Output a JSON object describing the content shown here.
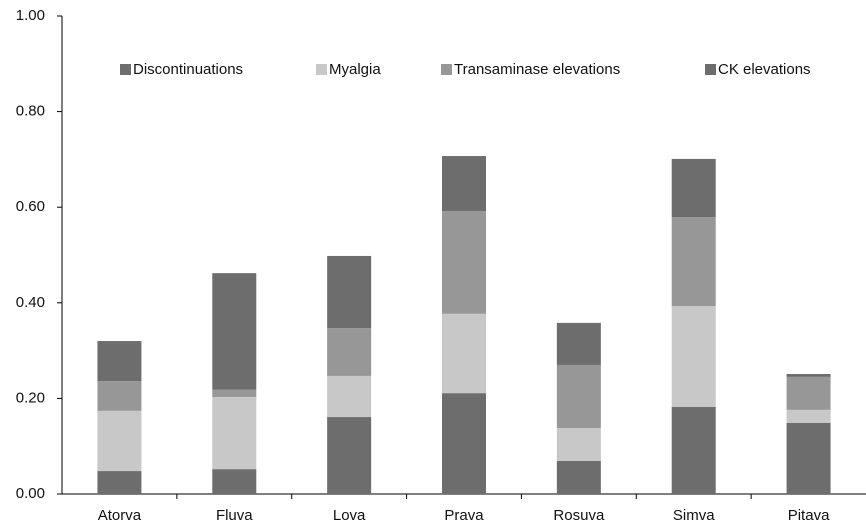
{
  "chart_data": {
    "type": "stacked_bar",
    "categories": [
      "Atorva",
      "Fluva",
      "Lova",
      "Prava",
      "Rosuva",
      "Simva",
      "Pitava"
    ],
    "series": [
      {
        "name": "Discontinuations",
        "color": "#6d6d6d",
        "values": [
          0.048,
          0.052,
          0.161,
          0.211,
          0.069,
          0.182,
          0.149
        ]
      },
      {
        "name": "Myalgia",
        "color": "#c8c8c8",
        "values": [
          0.126,
          0.151,
          0.086,
          0.166,
          0.069,
          0.211,
          0.027
        ]
      },
      {
        "name": "Transaminase elevations",
        "color": "#979797",
        "values": [
          0.062,
          0.015,
          0.1,
          0.215,
          0.132,
          0.186,
          0.069
        ]
      },
      {
        "name": "CK elevations",
        "color": "#6d6d6d",
        "values": [
          0.084,
          0.244,
          0.151,
          0.115,
          0.088,
          0.122,
          0.006
        ]
      }
    ],
    "ylim": [
      0,
      1
    ],
    "yticks": [
      {
        "value": 0,
        "label": "0.00"
      },
      {
        "value": 0.2,
        "label": "0.20"
      },
      {
        "value": 0.4,
        "label": "0.40"
      },
      {
        "value": 0.6,
        "label": "0.60"
      },
      {
        "value": 0.8,
        "label": "0.80"
      },
      {
        "value": 1,
        "label": "1.00"
      }
    ],
    "grid": false
  }
}
